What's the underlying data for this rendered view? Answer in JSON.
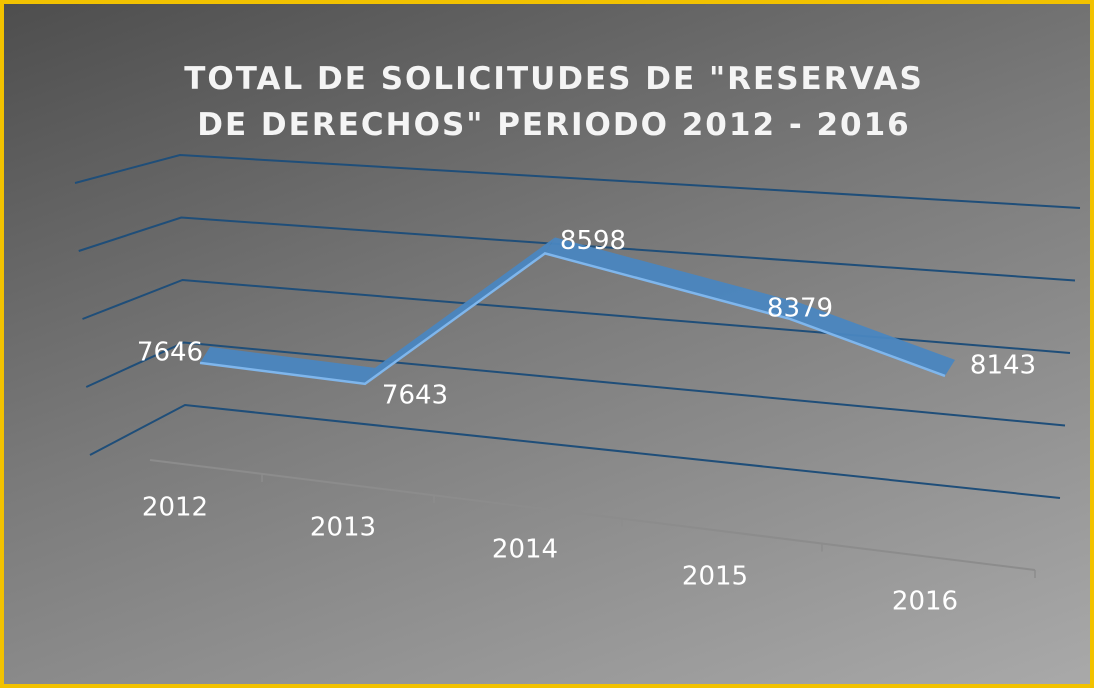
{
  "chart_data": {
    "type": "line",
    "title": "TOTAL DE SOLICITUDES DE \"RESERVAS DE DERECHOS\" PERIODO 2012 - 2016",
    "categories": [
      "2012",
      "2013",
      "2014",
      "2015",
      "2016"
    ],
    "values": [
      7646,
      7643,
      8598,
      8379,
      8143
    ],
    "color": "#4a86c0",
    "ylim": [
      7000,
      9000
    ],
    "yticks": [
      7000,
      7500,
      8000,
      8500,
      9000
    ],
    "grid": true
  }
}
